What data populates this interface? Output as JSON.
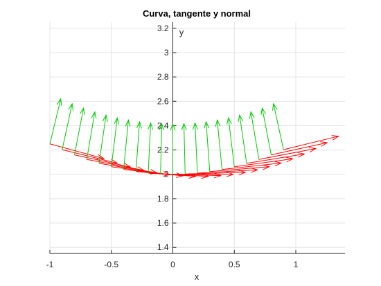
{
  "chart_data": {
    "type": "quiver",
    "title": "Curva, tangente y normal",
    "xlabel": "x",
    "ylabel": "y",
    "xlim": [
      -1,
      1.4
    ],
    "ylim": [
      1.35,
      3.25
    ],
    "xticks": [
      "-1",
      "-0.5",
      "0",
      "0.5",
      "1"
    ],
    "xtick_values": [
      -1,
      -0.5,
      0,
      0.5,
      1
    ],
    "yticks": [
      "1.4",
      "1.6",
      "1.8",
      "2",
      "2.2",
      "2.4",
      "2.6",
      "2.8",
      "3",
      "3.2"
    ],
    "ytick_values": [
      1.4,
      1.6,
      1.8,
      2.0,
      2.2,
      2.4,
      2.6,
      2.8,
      3.0,
      3.2
    ],
    "grid": true,
    "axes_location": "origin",
    "curve": {
      "description_equation": "y = x^2/4 + 2",
      "t_start": -1,
      "t_end": 0.9,
      "step": 0.1
    },
    "series": [
      {
        "kind": "tangent",
        "color": "#ff0000",
        "scale": 0.35
      },
      {
        "kind": "normal",
        "color": "#00cc00",
        "scale": 0.36
      }
    ]
  }
}
